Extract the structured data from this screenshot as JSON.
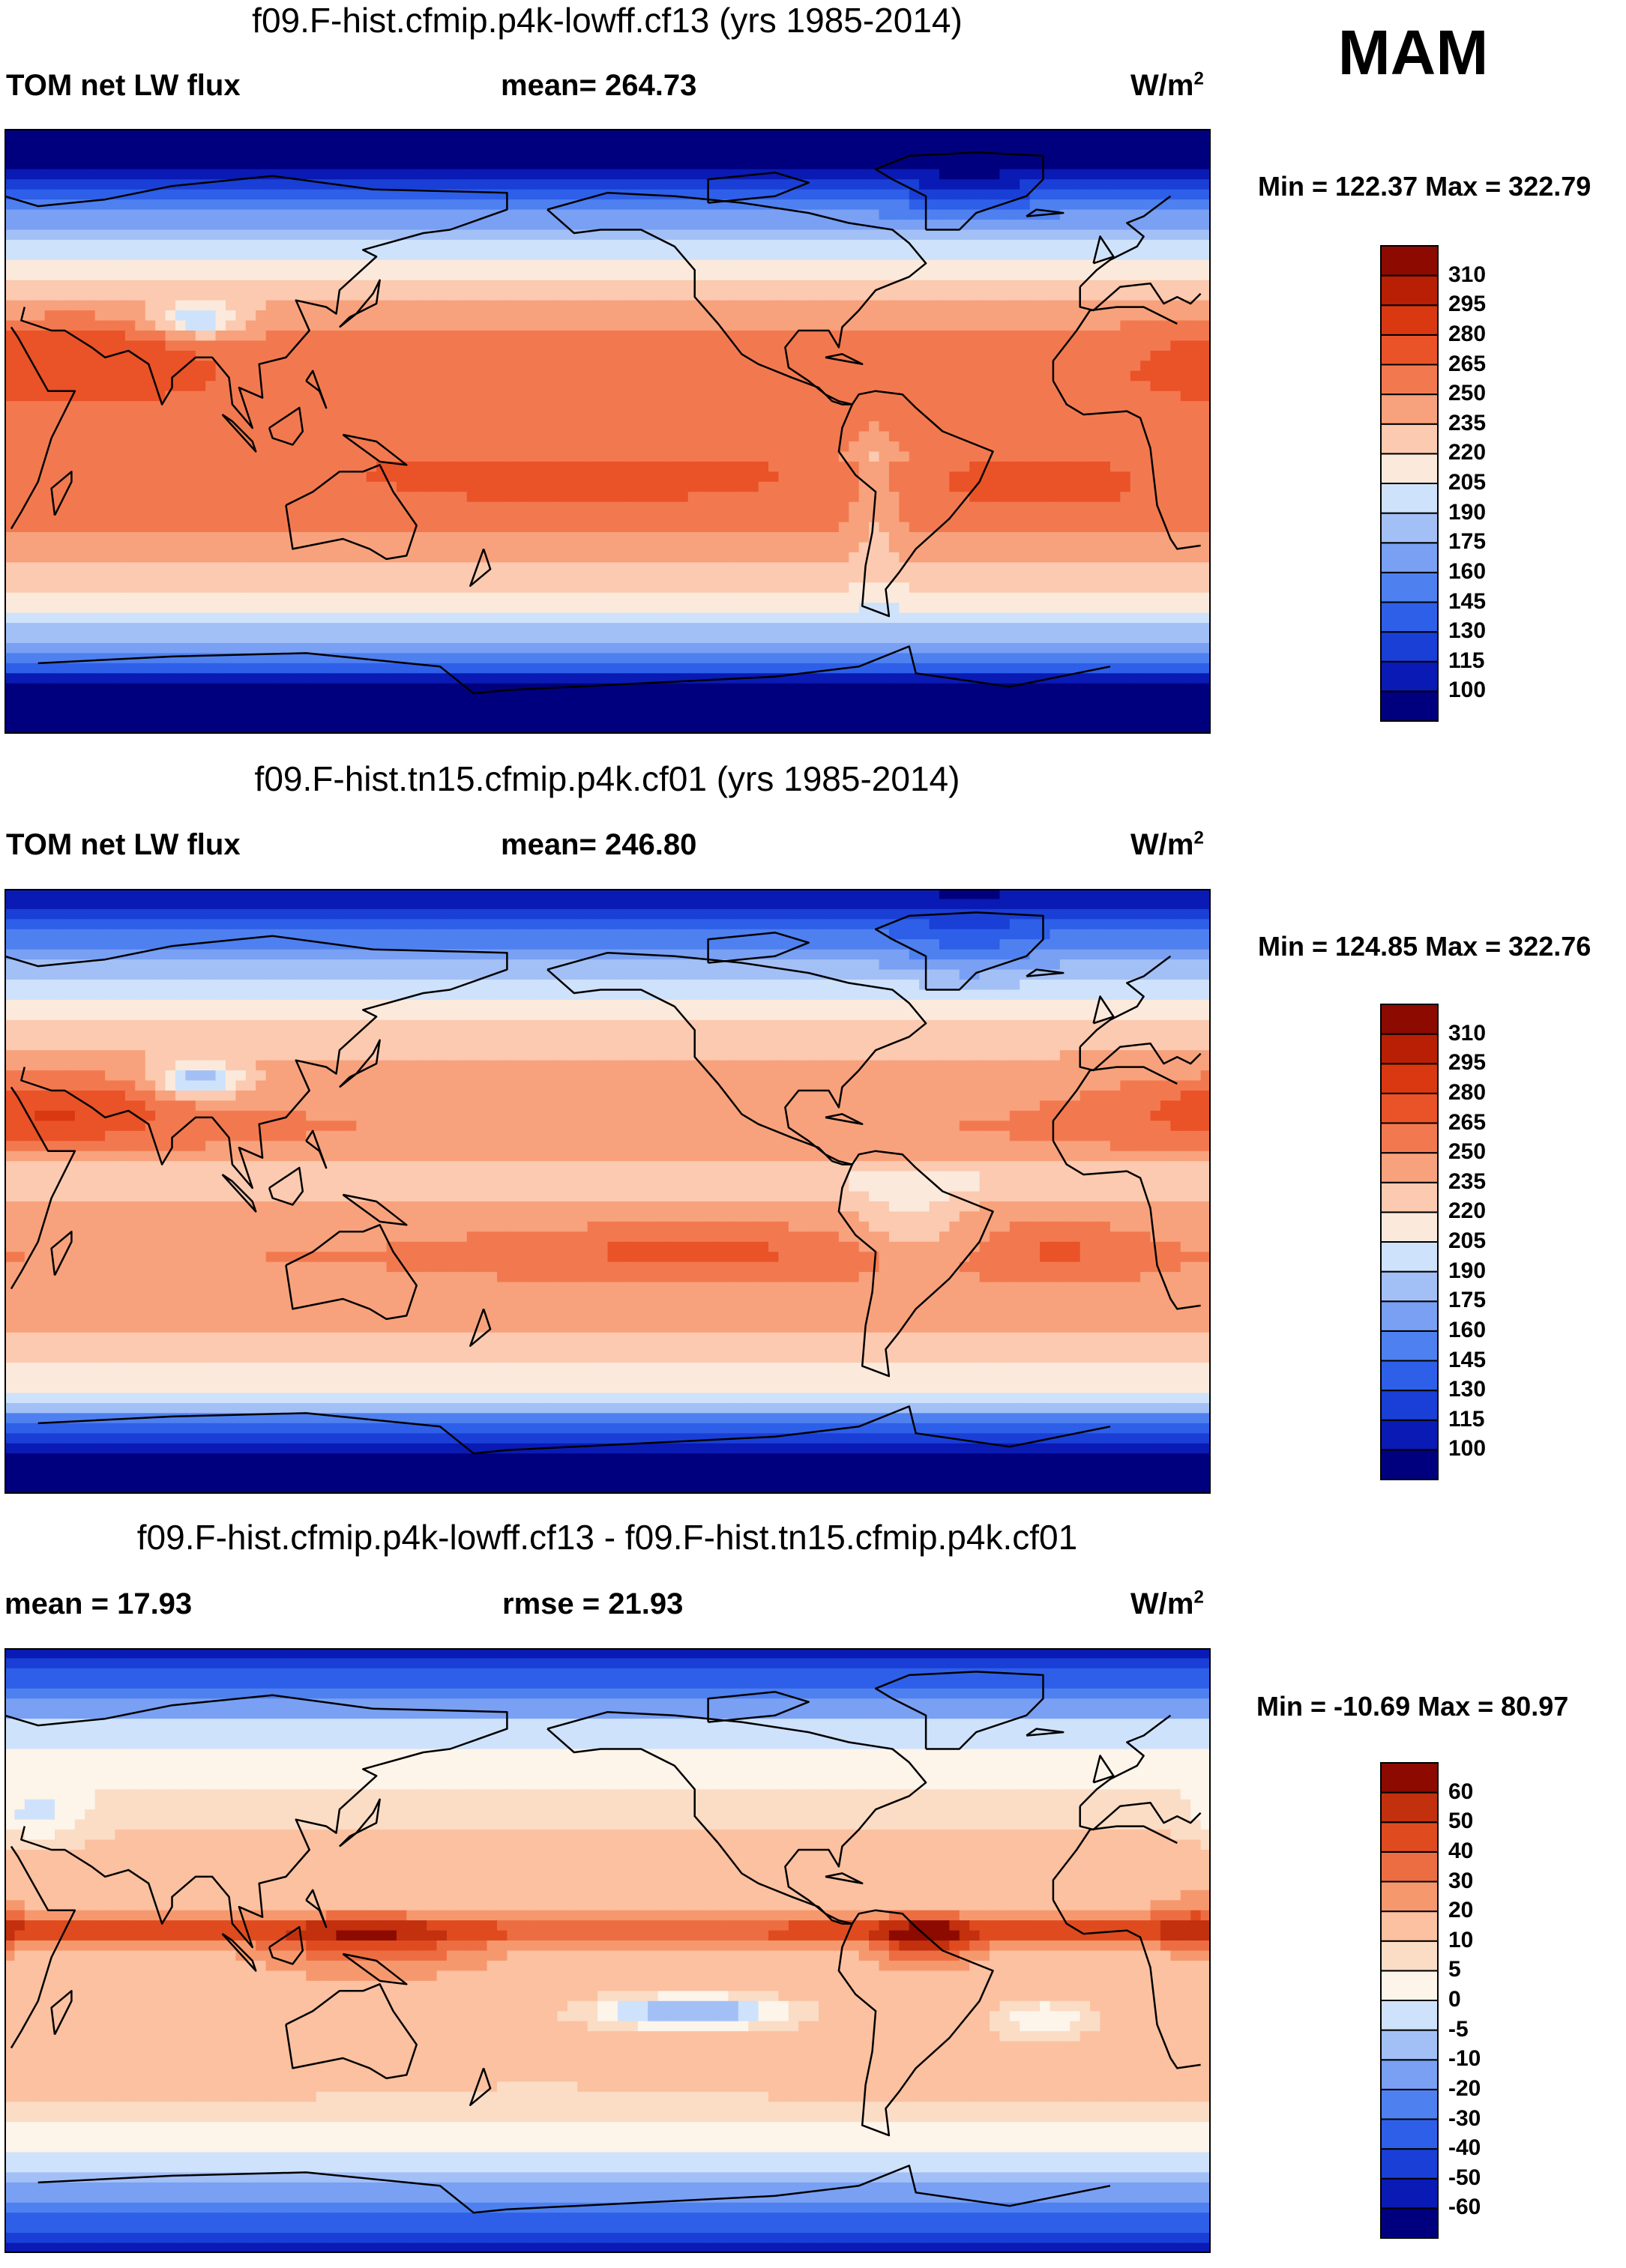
{
  "season": "MAM",
  "colors": {
    "abs_levels": [
      "#00007f",
      "#0a1ab4",
      "#1a3fd6",
      "#2e5fe8",
      "#4e80f0",
      "#79a0f3",
      "#a3c0f6",
      "#cfe2fb",
      "#fbeadc",
      "#fbcab0",
      "#f7a27c",
      "#f2794f",
      "#ea5228",
      "#da3810",
      "#b81f05",
      "#8c0a00"
    ],
    "diff_levels": [
      "#00007f",
      "#0a1ab4",
      "#1a3fd6",
      "#2e5fe8",
      "#4e80f0",
      "#79a0f3",
      "#a3c0f6",
      "#cfe2fb",
      "#fdf4ea",
      "#fbdcc5",
      "#fbc1a0",
      "#f6986e",
      "#ed6d42",
      "#df4b1f",
      "#c2300d",
      "#8c0a00"
    ],
    "coast": "#000000"
  },
  "panels": [
    {
      "title": "f09.F-hist.cfmip.p4k-lowff.cf13 (yrs 1985-2014)",
      "left_label": "TOM net LW flux",
      "center_label": "mean= 264.73",
      "units_base": "W/m",
      "units_sup": "2",
      "minmax": "Min = 122.37 Max = 322.79",
      "colorbar_ticks": [
        "310",
        "295",
        "280",
        "265",
        "250",
        "235",
        "220",
        "205",
        "190",
        "175",
        "160",
        "145",
        "130",
        "115",
        "100"
      ]
    },
    {
      "title": "f09.F-hist.tn15.cfmip.p4k.cf01 (yrs 1985-2014)",
      "left_label": "TOM net LW flux",
      "center_label": "mean= 246.80",
      "units_base": "W/m",
      "units_sup": "2",
      "minmax": "Min = 124.85 Max = 322.76",
      "colorbar_ticks": [
        "310",
        "295",
        "280",
        "265",
        "250",
        "235",
        "220",
        "205",
        "190",
        "175",
        "160",
        "145",
        "130",
        "115",
        "100"
      ]
    },
    {
      "title": "f09.F-hist.cfmip.p4k-lowff.cf13 - f09.F-hist.tn15.cfmip.p4k.cf01",
      "left_label": "mean =  17.93",
      "center_label": "rmse =  21.93",
      "units_base": "W/m",
      "units_sup": "2",
      "minmax": "Min = -10.69 Max =  80.97",
      "colorbar_ticks": [
        "60",
        "50",
        "40",
        "30",
        "20",
        "10",
        "5",
        "0",
        "-5",
        "-10",
        "-20",
        "-30",
        "-40",
        "-50",
        "-60"
      ]
    }
  ]
}
